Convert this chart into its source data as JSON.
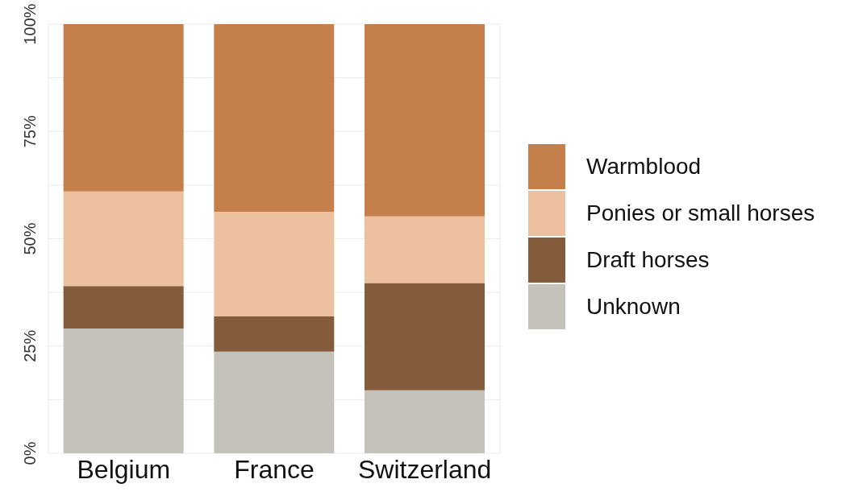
{
  "chart_data": {
    "type": "bar",
    "stacked": true,
    "categories": [
      "Belgium",
      "France",
      "Switzerland"
    ],
    "series": [
      {
        "name": "Unknown",
        "color": "#c5c1bb",
        "values": [
          29.1,
          23.7,
          14.7
        ]
      },
      {
        "name": "Draft horses",
        "color": "#845b3b",
        "values": [
          9.9,
          8.2,
          25.0
        ]
      },
      {
        "name": "Ponies or small horses",
        "color": "#edc09f",
        "values": [
          22.0,
          24.4,
          15.5
        ]
      },
      {
        "name": "Warmblood",
        "color": "#c47f4b",
        "values": [
          39.0,
          43.7,
          44.8
        ]
      }
    ],
    "ylim": [
      0,
      100
    ],
    "yticks": [
      {
        "value": 0,
        "label": "0%"
      },
      {
        "value": 12.5,
        "label": null
      },
      {
        "value": 25,
        "label": "25%"
      },
      {
        "value": 37.5,
        "label": null
      },
      {
        "value": 50,
        "label": "50%"
      },
      {
        "value": 62.5,
        "label": null
      },
      {
        "value": 75,
        "label": "75%"
      },
      {
        "value": 87.5,
        "label": null
      },
      {
        "value": 100,
        "label": "100%"
      }
    ],
    "grid": true,
    "legend": "right"
  }
}
